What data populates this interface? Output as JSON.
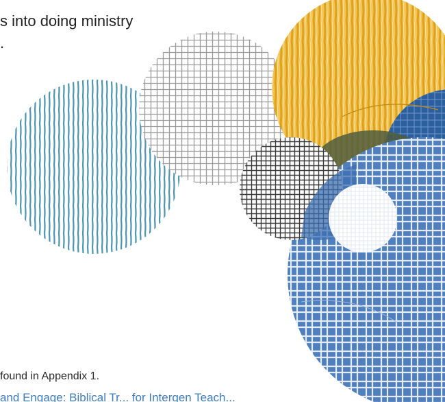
{
  "intro": {
    "line1": "",
    "line2": "s into doing ministry",
    "line3": "."
  },
  "footnote": {
    "text": "found in Appendix 1."
  },
  "link": {
    "text": "and Engage: Biblical Tr... for Intergen Teach..."
  },
  "colors": {
    "teal": "#4a95b3",
    "gray": "#9a9a9a",
    "gold": "#e6a919",
    "navy": "#2c5f9e",
    "blue": "#4f7fbf",
    "charcoal": "#3a3a3a",
    "link": "#3d7cc0"
  }
}
